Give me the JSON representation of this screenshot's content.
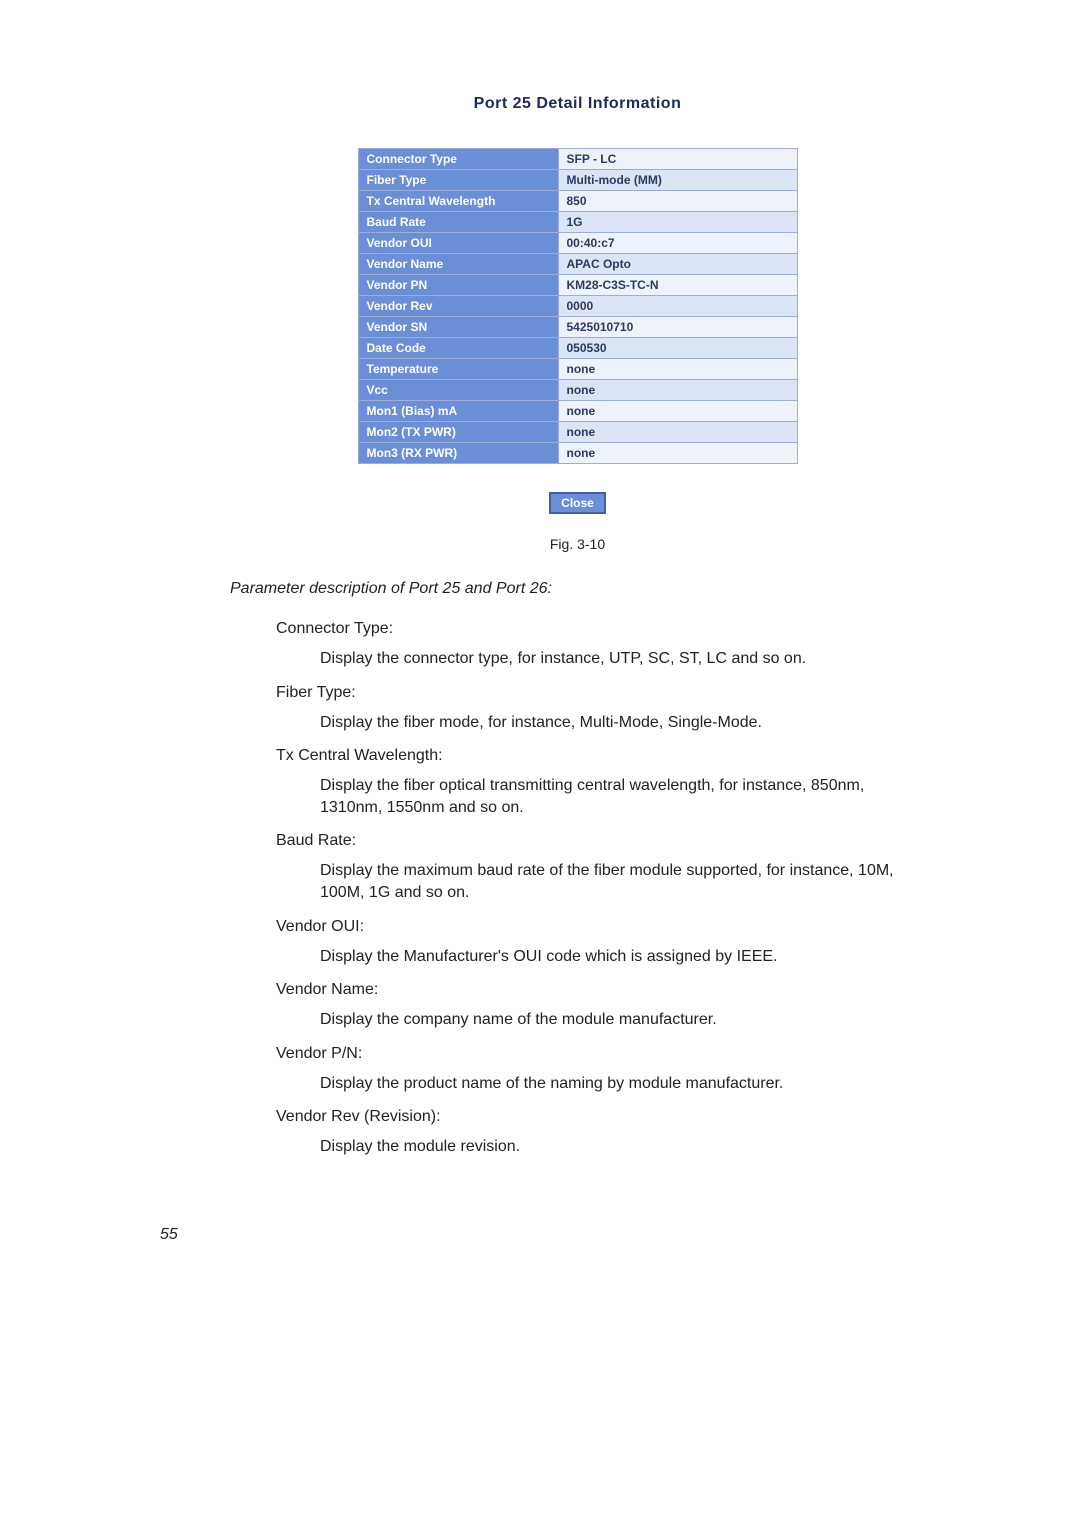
{
  "title": "Port 25 Detail Information",
  "table": {
    "rows": [
      {
        "label": "Connector Type",
        "value": "SFP - LC"
      },
      {
        "label": "Fiber Type",
        "value": "Multi-mode (MM)"
      },
      {
        "label": "Tx Central Wavelength",
        "value": "850"
      },
      {
        "label": "Baud Rate",
        "value": "1G"
      },
      {
        "label": "Vendor OUI",
        "value": "00:40:c7"
      },
      {
        "label": "Vendor Name",
        "value": "APAC Opto"
      },
      {
        "label": "Vendor PN",
        "value": "KM28-C3S-TC-N"
      },
      {
        "label": "Vendor Rev",
        "value": "0000"
      },
      {
        "label": "Vendor SN",
        "value": "5425010710"
      },
      {
        "label": "Date Code",
        "value": "050530"
      },
      {
        "label": "Temperature",
        "value": "none"
      },
      {
        "label": "Vcc",
        "value": "none"
      },
      {
        "label": "Mon1 (Bias) mA",
        "value": "none"
      },
      {
        "label": "Mon2 (TX PWR)",
        "value": "none"
      },
      {
        "label": "Mon3 (RX PWR)",
        "value": "none"
      }
    ],
    "label_bg": "#6b8fd6",
    "label_fg": "#ffffff",
    "odd_value_bg": "#eef3fb",
    "even_value_bg": "#dbe5f5",
    "border_color": "#9aaed6"
  },
  "close_label": "Close",
  "fig_caption": "Fig. 3-10",
  "param_header": "Parameter description of Port 25 and Port 26:",
  "definitions": [
    {
      "term": "Connector Type:",
      "def": "Display the connector type, for instance, UTP, SC, ST, LC and so on."
    },
    {
      "term": "Fiber Type:",
      "def": "Display the fiber mode, for instance, Multi-Mode, Single-Mode."
    },
    {
      "term": "Tx Central Wavelength:",
      "def": "Display the fiber optical transmitting central wavelength, for instance, 850nm, 1310nm, 1550nm and so on."
    },
    {
      "term": "Baud Rate:",
      "def": "Display the maximum baud rate of the fiber module supported, for instance, 10M, 100M, 1G and so on."
    },
    {
      "term": "Vendor OUI:",
      "def": "Display the Manufacturer's OUI code which is assigned by IEEE."
    },
    {
      "term": "Vendor Name:",
      "def": "Display the company name of the module manufacturer."
    },
    {
      "term": "Vendor P/N:",
      "def": "Display the product name of the naming by module manufacturer."
    },
    {
      "term": "Vendor Rev (Revision):",
      "def": "Display the module revision."
    }
  ],
  "page_number": "55"
}
